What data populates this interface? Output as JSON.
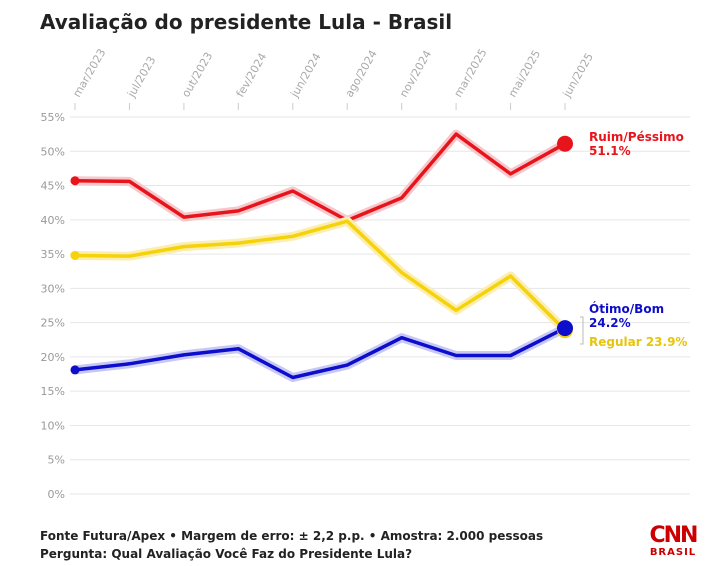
{
  "title": "Avaliação do presidente Lula - Brasil",
  "footer": {
    "source": "Fonte Futura/Apex • Margem de erro: ± 2,2 p.p. • Amostra: 2.000 pessoas",
    "question": "Pergunta: Qual Avaliação Você Faz do Presidente Lula?"
  },
  "logo": {
    "brand": "CNN",
    "sub": "BRASIL"
  },
  "chart_data": {
    "type": "line",
    "title": "Avaliação do presidente Lula - Brasil",
    "xlabel": "",
    "ylabel": "",
    "x_ticks": [
      "mar/2023",
      "jul/2023",
      "out/2023",
      "fev/2024",
      "jun/2024",
      "ago/2024",
      "nov/2024",
      "mar/2025",
      "mai/2025",
      "jun/2025"
    ],
    "y_ticks": [
      "0%",
      "5%",
      "10%",
      "15%",
      "20%",
      "25%",
      "30%",
      "35%",
      "40%",
      "45%",
      "50%",
      "55%"
    ],
    "ylim": [
      0,
      55
    ],
    "grid": true,
    "legend": "end labels (right)",
    "series": [
      {
        "name": "Ruim/Péssimo",
        "end_label": "Ruim/Péssimo",
        "end_value_label": "51.1%",
        "color": "#e8141c",
        "values": [
          45.7,
          45.6,
          40.4,
          41.3,
          44.2,
          39.9,
          43.2,
          52.5,
          46.7,
          51.1
        ]
      },
      {
        "name": "Regular",
        "end_label": "Regular 23.9%",
        "end_value_label": "",
        "color": "#f5d20a",
        "values": [
          34.8,
          34.7,
          36.1,
          36.6,
          37.6,
          39.8,
          32.3,
          26.8,
          31.8,
          23.9
        ]
      },
      {
        "name": "Ótimo/Bom",
        "end_label": "Ótimo/Bom",
        "end_value_label": "24.2%",
        "color": "#0d0dcc",
        "values": [
          18.1,
          19.0,
          20.3,
          21.2,
          17.0,
          18.8,
          22.8,
          20.2,
          20.2,
          24.2
        ]
      }
    ]
  }
}
